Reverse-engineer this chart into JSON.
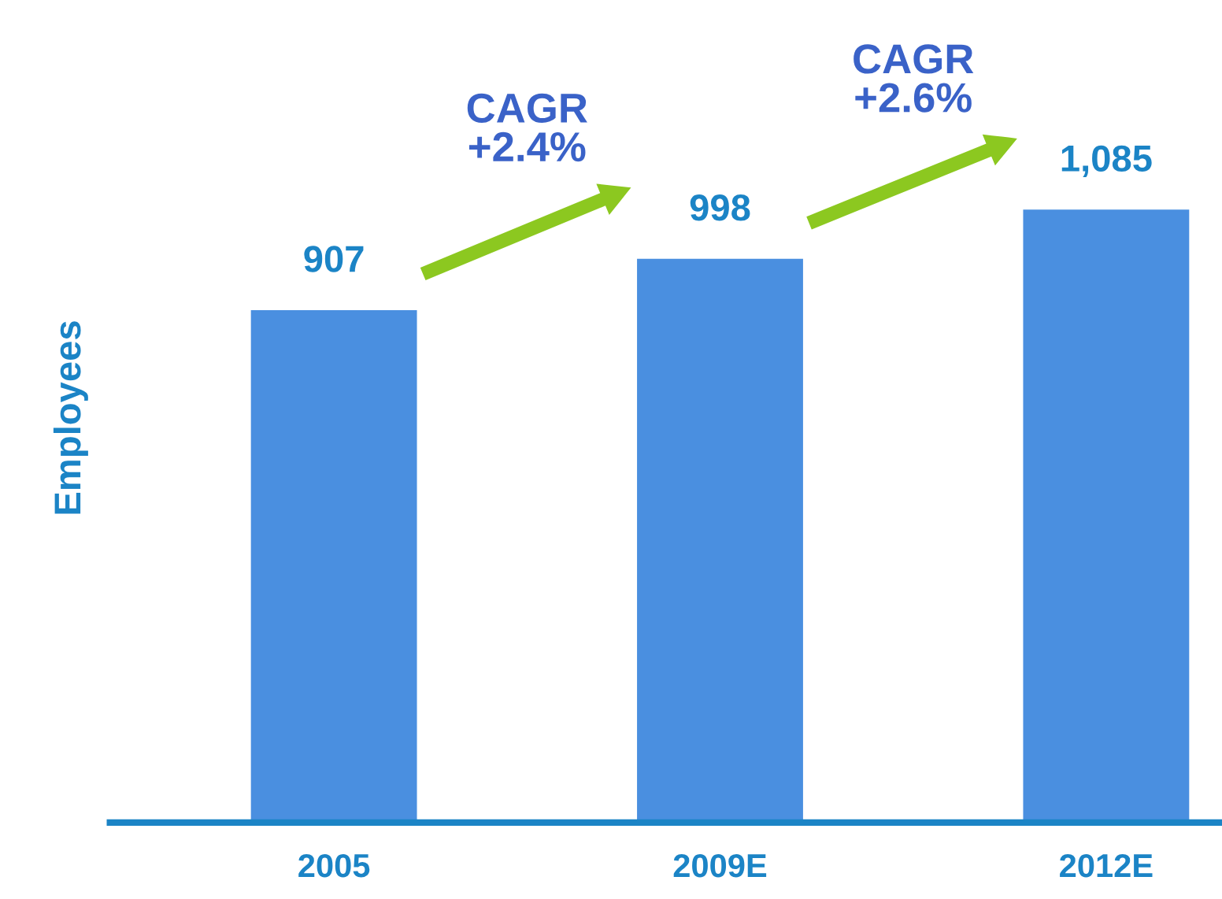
{
  "chart_data": {
    "type": "bar",
    "ylabel": "Employees",
    "categories": [
      "2005",
      "2009E",
      "2012E"
    ],
    "values": [
      907,
      998,
      1085
    ],
    "color": "#4a8fe0",
    "value_labels": [
      "907",
      "998",
      "1,085"
    ],
    "grid": false,
    "legend": false,
    "annotations": [
      "CAGR\n+2.4%",
      "CAGR\n+2.6%"
    ]
  }
}
